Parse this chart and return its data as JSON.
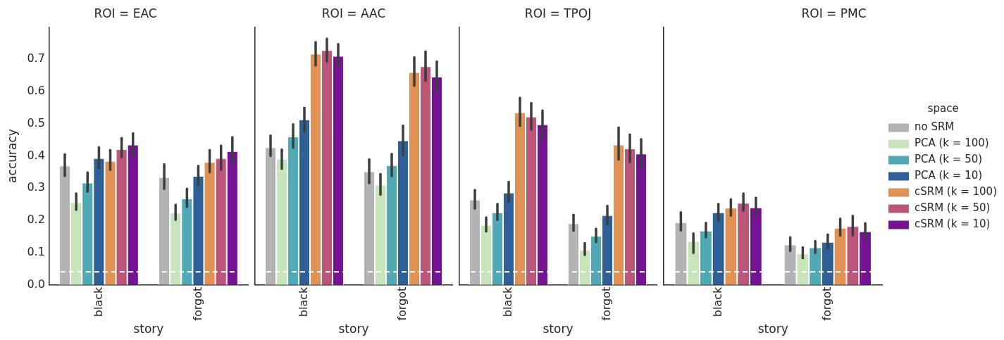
{
  "chart_data": [
    {
      "type": "bar",
      "title": "ROI = EAC",
      "xlabel": "story",
      "ylabel": "accuracy",
      "categories": [
        "black",
        "forgot"
      ],
      "ylim": [
        0,
        0.8
      ],
      "yticks": [
        {
          "value": 0,
          "label": "0.0"
        },
        0.1,
        0.2,
        0.3,
        0.4,
        0.5,
        0.6,
        0.7
      ],
      "grid": false,
      "legend": false,
      "ref_lines": [
        {
          "axis": "y",
          "value": 0.04,
          "color": "#ffffff",
          "line_style": "dashed"
        }
      ],
      "series": [
        {
          "color": "#b3b3b3",
          "values": [
            0.37,
            0.334
          ],
          "errors": [
            [
              0.338,
              0.405
            ],
            [
              0.298,
              0.374
            ]
          ]
        },
        {
          "color": "#c8e4bb",
          "values": [
            0.256,
            0.224
          ],
          "errors": [
            [
              0.233,
              0.283
            ],
            [
              0.202,
              0.248
            ]
          ]
        },
        {
          "color": "#50a9b4",
          "values": [
            0.317,
            0.268
          ],
          "errors": [
            [
              0.289,
              0.349
            ],
            [
              0.242,
              0.298
            ]
          ]
        },
        {
          "color": "#2e5f96",
          "values": [
            0.393,
            0.338
          ],
          "errors": [
            [
              0.362,
              0.427
            ],
            [
              0.31,
              0.369
            ]
          ]
        },
        {
          "color": "#e09254",
          "values": [
            0.384,
            0.381
          ],
          "errors": [
            [
              0.357,
              0.418
            ],
            [
              0.35,
              0.418
            ]
          ]
        },
        {
          "color": "#bb557a",
          "values": [
            0.421,
            0.393
          ],
          "errors": [
            [
              0.396,
              0.455
            ],
            [
              0.357,
              0.432
            ]
          ]
        },
        {
          "color": "#741492",
          "values": [
            0.435,
            0.415
          ],
          "errors": [
            [
              0.399,
              0.47
            ],
            [
              0.377,
              0.458
            ]
          ]
        }
      ]
    },
    {
      "type": "bar",
      "title": "ROI = AAC",
      "xlabel": "story",
      "categories": [
        "black",
        "forgot"
      ],
      "ylim": [
        0,
        0.8
      ],
      "tick_labels": "x",
      "grid": false,
      "legend": false,
      "ref_lines": [
        {
          "axis": "y",
          "value": 0.04,
          "color": "#ffffff",
          "line_style": "dashed"
        }
      ],
      "series": [
        {
          "color": "#b3b3b3",
          "values": [
            0.427,
            0.352
          ],
          "errors": [
            [
              0.4,
              0.463
            ],
            [
              0.316,
              0.389
            ]
          ]
        },
        {
          "color": "#c8e4bb",
          "values": [
            0.39,
            0.311
          ],
          "errors": [
            [
              0.36,
              0.42
            ],
            [
              0.28,
              0.344
            ]
          ]
        },
        {
          "color": "#50a9b4",
          "values": [
            0.46,
            0.371
          ],
          "errors": [
            [
              0.426,
              0.498
            ],
            [
              0.338,
              0.406
            ]
          ]
        },
        {
          "color": "#2e5f96",
          "values": [
            0.513,
            0.448
          ],
          "errors": [
            [
              0.476,
              0.549
            ],
            [
              0.403,
              0.494
            ]
          ]
        },
        {
          "color": "#e09254",
          "values": [
            0.717,
            0.66
          ],
          "errors": [
            [
              0.681,
              0.753
            ],
            [
              0.618,
              0.706
            ]
          ]
        },
        {
          "color": "#bb557a",
          "values": [
            0.728,
            0.678
          ],
          "errors": [
            [
              0.693,
              0.764
            ],
            [
              0.633,
              0.724
            ]
          ]
        },
        {
          "color": "#741492",
          "values": [
            0.71,
            0.646
          ],
          "errors": [
            [
              0.675,
              0.747
            ],
            [
              0.601,
              0.693
            ]
          ]
        }
      ]
    },
    {
      "type": "bar",
      "title": "ROI = TPOJ",
      "xlabel": "story",
      "categories": [
        "black",
        "forgot"
      ],
      "ylim": [
        0,
        0.8
      ],
      "tick_labels": "x",
      "grid": false,
      "legend": false,
      "ref_lines": [
        {
          "axis": "y",
          "value": 0.04,
          "color": "#ffffff",
          "line_style": "dashed"
        }
      ],
      "series": [
        {
          "color": "#b3b3b3",
          "values": [
            0.264,
            0.191
          ],
          "errors": [
            [
              0.237,
              0.294
            ],
            [
              0.168,
              0.217
            ]
          ]
        },
        {
          "color": "#c8e4bb",
          "values": [
            0.185,
            0.109
          ],
          "errors": [
            [
              0.166,
              0.209
            ],
            [
              0.093,
              0.129
            ]
          ]
        },
        {
          "color": "#50a9b4",
          "values": [
            0.225,
            0.152
          ],
          "errors": [
            [
              0.202,
              0.251
            ],
            [
              0.133,
              0.174
            ]
          ]
        },
        {
          "color": "#2e5f96",
          "values": [
            0.286,
            0.216
          ],
          "errors": [
            [
              0.258,
              0.319
            ],
            [
              0.188,
              0.245
            ]
          ]
        },
        {
          "color": "#e09254",
          "values": [
            0.535,
            0.435
          ],
          "errors": [
            [
              0.494,
              0.58
            ],
            [
              0.389,
              0.488
            ]
          ]
        },
        {
          "color": "#bb557a",
          "values": [
            0.522,
            0.423
          ],
          "errors": [
            [
              0.482,
              0.564
            ],
            [
              0.381,
              0.466
            ]
          ]
        },
        {
          "color": "#741492",
          "values": [
            0.498,
            0.407
          ],
          "errors": [
            [
              0.454,
              0.541
            ],
            [
              0.362,
              0.452
            ]
          ]
        }
      ]
    },
    {
      "type": "bar",
      "title": "ROI = PMC",
      "xlabel": "story",
      "categories": [
        "black",
        "forgot"
      ],
      "ylim": [
        0,
        0.8
      ],
      "tick_labels": "x",
      "grid": false,
      "legend": "right",
      "legend_title": "space",
      "ref_lines": [
        {
          "axis": "y",
          "value": 0.04,
          "color": "#ffffff",
          "line_style": "dashed"
        }
      ],
      "series": [
        {
          "name": "no SRM",
          "color": "#b3b3b3",
          "values": [
            0.194,
            0.125
          ],
          "errors": [
            [
              0.169,
              0.225
            ],
            [
              0.105,
              0.147
            ]
          ]
        },
        {
          "name": "PCA (k = 100)",
          "color": "#c8e4bb",
          "values": [
            0.136,
            0.097
          ],
          "errors": [
            [
              0.099,
              0.159
            ],
            [
              0.083,
              0.116
            ]
          ]
        },
        {
          "name": "PCA (k = 50)",
          "color": "#50a9b4",
          "values": [
            0.168,
            0.116
          ],
          "errors": [
            [
              0.148,
              0.192
            ],
            [
              0.099,
              0.136
            ]
          ]
        },
        {
          "name": "PCA (k = 10)",
          "color": "#2e5f96",
          "values": [
            0.225,
            0.133
          ],
          "errors": [
            [
              0.199,
              0.251
            ],
            [
              0.114,
              0.156
            ]
          ]
        },
        {
          "name": "cSRM (k = 100)",
          "color": "#e09254",
          "values": [
            0.239,
            0.177
          ],
          "errors": [
            [
              0.215,
              0.265
            ],
            [
              0.153,
              0.205
            ]
          ]
        },
        {
          "name": "cSRM (k = 50)",
          "color": "#bb557a",
          "values": [
            0.254,
            0.182
          ],
          "errors": [
            [
              0.23,
              0.283
            ],
            [
              0.154,
              0.214
            ]
          ]
        },
        {
          "name": "cSRM (k = 10)",
          "color": "#741492",
          "values": [
            0.24,
            0.166
          ],
          "errors": [
            [
              0.215,
              0.27
            ],
            [
              0.144,
              0.191
            ]
          ]
        }
      ]
    }
  ]
}
